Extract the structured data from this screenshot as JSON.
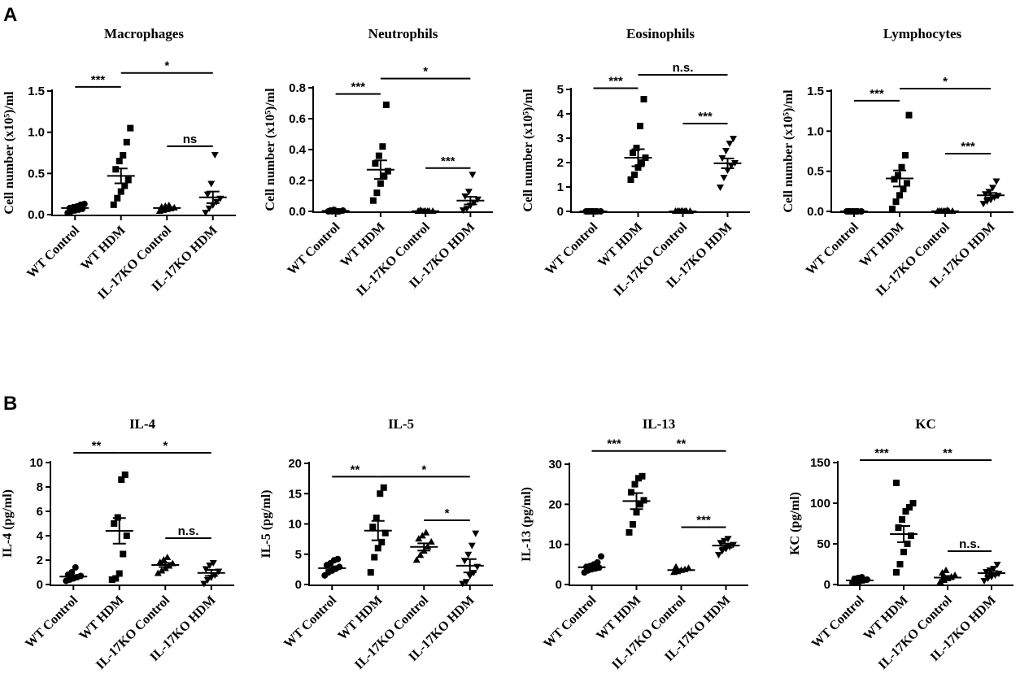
{
  "panels": [
    {
      "letter": "A"
    },
    {
      "letter": "B"
    }
  ],
  "chart_data": [
    {
      "type": "scatter",
      "panel": "A",
      "title": "Macrophages",
      "ylabel": "Cell number (x10⁵)/ml",
      "ylim": [
        0,
        1.5
      ],
      "yticks": [
        0,
        0.5,
        1.0,
        1.5
      ],
      "ytick_labels": [
        "0.0",
        "0.5",
        "1.0",
        "1.5"
      ],
      "categories": [
        "WT Control",
        "WT HDM",
        "IL-17KO Control",
        "IL-17KO HDM"
      ],
      "markers": [
        "circle",
        "square",
        "triangle-up",
        "triangle-down"
      ],
      "groups": [
        {
          "points": [
            0.02,
            0.04,
            0.05,
            0.06,
            0.07,
            0.08,
            0.09,
            0.1,
            0.12,
            0.13
          ],
          "mean": 0.08,
          "sem": 0.01
        },
        {
          "points": [
            0.12,
            0.2,
            0.28,
            0.35,
            0.42,
            0.55,
            0.65,
            0.72,
            0.88,
            1.05
          ],
          "mean": 0.47,
          "sem": 0.09
        },
        {
          "points": [
            0.04,
            0.05,
            0.06,
            0.07,
            0.08,
            0.09,
            0.1,
            0.11
          ],
          "mean": 0.08,
          "sem": 0.01
        },
        {
          "points": [
            0.03,
            0.08,
            0.12,
            0.16,
            0.2,
            0.25,
            0.38,
            0.73
          ],
          "mean": 0.21,
          "sem": 0.07
        }
      ],
      "significance": [
        {
          "from": 0,
          "to": 1,
          "y": 1.55,
          "label": "***"
        },
        {
          "from": 1,
          "to": 3,
          "y": 1.72,
          "label": "*"
        },
        {
          "from": 2,
          "to": 3,
          "y": 0.83,
          "label": "ns"
        }
      ]
    },
    {
      "type": "scatter",
      "panel": "A",
      "title": "Neutrophils",
      "ylabel": "Cell number (x10⁵)/ml",
      "ylim": [
        0,
        0.8
      ],
      "yticks": [
        0,
        0.2,
        0.4,
        0.6,
        0.8
      ],
      "ytick_labels": [
        "0.0",
        "0.2",
        "0.4",
        "0.6",
        "0.8"
      ],
      "categories": [
        "WT Control",
        "WT HDM",
        "IL-17KO Control",
        "IL-17KO HDM"
      ],
      "markers": [
        "circle",
        "square",
        "triangle-up",
        "triangle-down"
      ],
      "groups": [
        {
          "points": [
            0.0,
            0.0,
            0.0,
            0.0,
            0.005,
            0.005,
            0.01,
            0.0
          ],
          "mean": 0.003,
          "sem": 0.002
        },
        {
          "points": [
            0.07,
            0.12,
            0.18,
            0.23,
            0.26,
            0.31,
            0.36,
            0.42,
            0.69
          ],
          "mean": 0.27,
          "sem": 0.06
        },
        {
          "points": [
            0.0,
            0.0,
            0.0,
            0.0,
            0.0,
            0.005,
            0.0,
            0.0
          ],
          "mean": 0.001,
          "sem": 0.001
        },
        {
          "points": [
            0.01,
            0.02,
            0.04,
            0.06,
            0.08,
            0.1,
            0.13,
            0.24
          ],
          "mean": 0.07,
          "sem": 0.025
        }
      ],
      "significance": [
        {
          "from": 0,
          "to": 1,
          "y": 0.76,
          "label": "***"
        },
        {
          "from": 1,
          "to": 3,
          "y": 0.86,
          "label": "*"
        },
        {
          "from": 2,
          "to": 3,
          "y": 0.28,
          "label": "***"
        }
      ]
    },
    {
      "type": "scatter",
      "panel": "A",
      "title": "Eosinophils",
      "ylabel": "Cell number (x10⁵)/ml",
      "ylim": [
        0,
        5
      ],
      "yticks": [
        0,
        1,
        2,
        3,
        4,
        5
      ],
      "ytick_labels": [
        "0",
        "1",
        "2",
        "3",
        "4",
        "5"
      ],
      "categories": [
        "WT Control",
        "WT HDM",
        "IL-17KO Control",
        "IL-17KO HDM"
      ],
      "markers": [
        "circle",
        "square",
        "triangle-up",
        "triangle-down"
      ],
      "groups": [
        {
          "points": [
            0,
            0,
            0,
            0,
            0,
            0,
            0,
            0
          ],
          "mean": 0,
          "sem": 0
        },
        {
          "points": [
            1.3,
            1.5,
            1.8,
            2.0,
            2.2,
            2.4,
            2.6,
            3.5,
            4.6
          ],
          "mean": 2.2,
          "sem": 0.35
        },
        {
          "points": [
            0,
            0,
            0,
            0,
            0,
            0,
            0,
            0
          ],
          "mean": 0,
          "sem": 0
        },
        {
          "points": [
            1.0,
            1.4,
            1.7,
            1.9,
            2.0,
            2.2,
            2.5,
            2.8,
            3.0
          ],
          "mean": 1.97,
          "sem": 0.2
        }
      ],
      "significance": [
        {
          "from": 0,
          "to": 1,
          "y": 5.05,
          "label": "***"
        },
        {
          "from": 1,
          "to": 3,
          "y": 5.6,
          "label": "n.s."
        },
        {
          "from": 2,
          "to": 3,
          "y": 3.6,
          "label": "***"
        }
      ]
    },
    {
      "type": "scatter",
      "panel": "A",
      "title": "Lymphocytes",
      "ylabel": "Cell number (x10⁵)/ml",
      "ylim": [
        0,
        1.5
      ],
      "yticks": [
        0,
        0.5,
        1.0,
        1.5
      ],
      "ytick_labels": [
        "0.0",
        "0.5",
        "1.0",
        "1.5"
      ],
      "categories": [
        "WT Control",
        "WT HDM",
        "IL-17KO Control",
        "IL-17KO HDM"
      ],
      "markers": [
        "circle",
        "square",
        "triangle-up",
        "triangle-down"
      ],
      "groups": [
        {
          "points": [
            0,
            0,
            0,
            0,
            0,
            0,
            0,
            0
          ],
          "mean": 0,
          "sem": 0
        },
        {
          "points": [
            0.03,
            0.12,
            0.2,
            0.28,
            0.35,
            0.4,
            0.45,
            0.55,
            0.7,
            1.2
          ],
          "mean": 0.41,
          "sem": 0.1
        },
        {
          "points": [
            0,
            0,
            0,
            0,
            0,
            0,
            0,
            0.01
          ],
          "mean": 0.001,
          "sem": 0.001
        },
        {
          "points": [
            0.1,
            0.13,
            0.15,
            0.18,
            0.2,
            0.22,
            0.25,
            0.3,
            0.38
          ],
          "mean": 0.2,
          "sem": 0.03
        }
      ],
      "significance": [
        {
          "from": 0,
          "to": 1,
          "y": 1.38,
          "label": "***"
        },
        {
          "from": 1,
          "to": 3,
          "y": 1.53,
          "label": "*"
        },
        {
          "from": 2,
          "to": 3,
          "y": 0.72,
          "label": "***"
        }
      ]
    },
    {
      "type": "scatter",
      "panel": "B",
      "title": "IL-4",
      "ylabel": "IL-4 (pg/ml)",
      "ylim": [
        0,
        10
      ],
      "yticks": [
        0,
        2,
        4,
        6,
        8,
        10
      ],
      "ytick_labels": [
        "0",
        "2",
        "4",
        "6",
        "8",
        "10"
      ],
      "categories": [
        "WT Control",
        "WT HDM",
        "IL-17KO Control",
        "IL-17KO HDM"
      ],
      "markers": [
        "circle",
        "square",
        "triangle-up",
        "triangle-down"
      ],
      "groups": [
        {
          "points": [
            0.3,
            0.4,
            0.5,
            0.6,
            0.7,
            0.8,
            1.0,
            1.4
          ],
          "mean": 0.65,
          "sem": 0.12
        },
        {
          "points": [
            0.4,
            0.5,
            0.9,
            2.5,
            4.0,
            5.0,
            5.5,
            8.6,
            9.0
          ],
          "mean": 4.4,
          "sem": 1.05
        },
        {
          "points": [
            0.9,
            1.1,
            1.3,
            1.5,
            1.7,
            1.8,
            2.0,
            2.2
          ],
          "mean": 1.6,
          "sem": 0.17
        },
        {
          "points": [
            0.1,
            0.4,
            0.6,
            0.8,
            1.1,
            1.3,
            1.6,
            1.8
          ],
          "mean": 0.95,
          "sem": 0.25
        }
      ],
      "significance": [
        {
          "from": 0,
          "to": 1,
          "y": 10.8,
          "label": "**"
        },
        {
          "from": 1,
          "to": 3,
          "y": 10.8,
          "label": "*"
        },
        {
          "from": 2,
          "to": 3,
          "y": 3.8,
          "label": "n.s."
        }
      ]
    },
    {
      "type": "scatter",
      "panel": "B",
      "title": "IL-5",
      "ylabel": "IL-5 (pg/ml)",
      "ylim": [
        0,
        20
      ],
      "yticks": [
        0,
        5,
        10,
        15,
        20
      ],
      "ytick_labels": [
        "0",
        "5",
        "10",
        "15",
        "20"
      ],
      "categories": [
        "WT Control",
        "WT HDM",
        "IL-17KO Control",
        "IL-17KO HDM"
      ],
      "markers": [
        "circle",
        "square",
        "triangle-up",
        "triangle-down"
      ],
      "groups": [
        {
          "points": [
            1.5,
            2.0,
            2.3,
            2.6,
            2.9,
            3.2,
            3.5,
            4.0,
            4.2
          ],
          "mean": 2.7,
          "sem": 0.3
        },
        {
          "points": [
            2.0,
            4.5,
            6.0,
            7.0,
            8.5,
            9.5,
            11.0,
            15.0,
            16.0
          ],
          "mean": 8.9,
          "sem": 1.6
        },
        {
          "points": [
            4.0,
            4.8,
            5.5,
            6.2,
            7.0,
            7.5,
            8.0,
            8.5
          ],
          "mean": 6.2,
          "sem": 0.6
        },
        {
          "points": [
            0.2,
            0.5,
            1.5,
            2.0,
            3.0,
            4.0,
            5.0,
            6.5,
            8.5
          ],
          "mean": 3.1,
          "sem": 1.1
        }
      ],
      "significance": [
        {
          "from": 0,
          "to": 1,
          "y": 17.8,
          "label": "**"
        },
        {
          "from": 1,
          "to": 3,
          "y": 17.8,
          "label": "*"
        },
        {
          "from": 2,
          "to": 3,
          "y": 10.6,
          "label": "*"
        }
      ]
    },
    {
      "type": "scatter",
      "panel": "B",
      "title": "IL-13",
      "ylabel": "IL-13 (pg/ml)",
      "ylim": [
        0,
        30
      ],
      "yticks": [
        0,
        10,
        20,
        30
      ],
      "ytick_labels": [
        "0",
        "10",
        "20",
        "30"
      ],
      "categories": [
        "WT Control",
        "WT HDM",
        "IL-17KO Control",
        "IL-17KO HDM"
      ],
      "markers": [
        "circle",
        "square",
        "triangle-up",
        "triangle-down"
      ],
      "groups": [
        {
          "points": [
            3.0,
            3.5,
            3.8,
            4.0,
            4.2,
            4.4,
            4.6,
            5.0,
            5.5,
            7.0
          ],
          "mean": 4.3,
          "sem": 0.35
        },
        {
          "points": [
            13.0,
            15.0,
            18.0,
            20.0,
            21.0,
            23.0,
            25.0,
            26.5,
            27.0
          ],
          "mean": 20.8,
          "sem": 2.0
        },
        {
          "points": [
            3.0,
            3.2,
            3.5,
            3.7,
            4.0,
            4.3
          ],
          "mean": 3.6,
          "sem": 0.2
        },
        {
          "points": [
            7.5,
            8.5,
            9.0,
            9.5,
            10.0,
            10.5,
            11.0,
            11.5
          ],
          "mean": 9.7,
          "sem": 0.5
        }
      ],
      "significance": [
        {
          "from": 0,
          "to": 1,
          "y": 33.3,
          "label": "***"
        },
        {
          "from": 1,
          "to": 3,
          "y": 33.3,
          "label": "**"
        },
        {
          "from": 2,
          "to": 3,
          "y": 14.3,
          "label": "***"
        }
      ]
    },
    {
      "type": "scatter",
      "panel": "B",
      "title": "KC",
      "ylabel": "KC (pg/ml)",
      "ylim": [
        0,
        150
      ],
      "yticks": [
        0,
        50,
        100,
        150
      ],
      "ytick_labels": [
        "0",
        "50",
        "100",
        "150"
      ],
      "categories": [
        "WT Control",
        "WT HDM",
        "IL-17KO Control",
        "IL-17KO HDM"
      ],
      "markers": [
        "circle",
        "square",
        "triangle-up",
        "triangle-down"
      ],
      "groups": [
        {
          "points": [
            2,
            3,
            4,
            5,
            6,
            7,
            8,
            9
          ],
          "mean": 5,
          "sem": 1
        },
        {
          "points": [
            15,
            25,
            40,
            50,
            60,
            70,
            80,
            90,
            95,
            100,
            125
          ],
          "mean": 62,
          "sem": 10
        },
        {
          "points": [
            3,
            5,
            7,
            9,
            11,
            14,
            17
          ],
          "mean": 8.5,
          "sem": 2
        },
        {
          "points": [
            5,
            8,
            10,
            12,
            14,
            16,
            18,
            20,
            25
          ],
          "mean": 14,
          "sem": 2.5
        }
      ],
      "significance": [
        {
          "from": 0,
          "to": 1,
          "y": 153,
          "label": "***"
        },
        {
          "from": 1,
          "to": 3,
          "y": 153,
          "label": "**"
        },
        {
          "from": 2,
          "to": 3,
          "y": 41,
          "label": "n.s."
        }
      ]
    }
  ]
}
